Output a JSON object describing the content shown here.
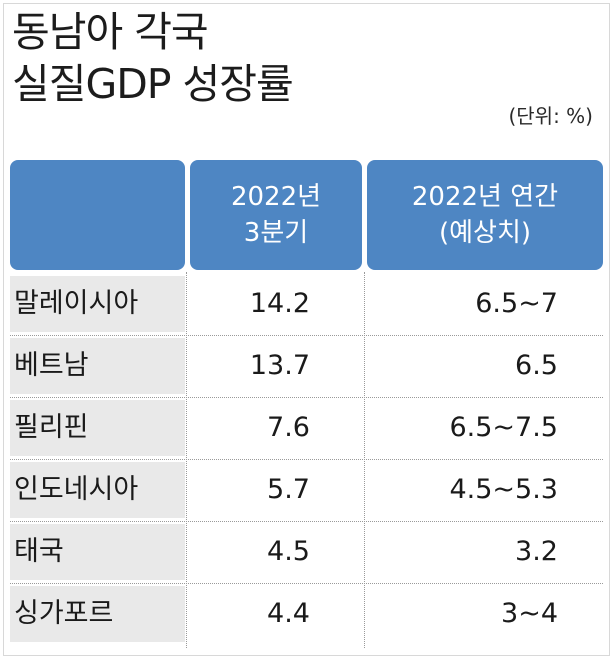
{
  "title_line1": "동남아 각국",
  "title_line2": "실질GDP 성장률",
  "unit": "(단위: %)",
  "headers": {
    "col0": "",
    "col1_line1": "2022년",
    "col1_line2": "3분기",
    "col2_line1": "2022년 연간",
    "col2_line2": "(예상치)"
  },
  "rows": [
    {
      "country": "말레이시아",
      "q3": "14.2",
      "annual": "6.5~7"
    },
    {
      "country": "베트남",
      "q3": "13.7",
      "annual": "6.5"
    },
    {
      "country": "필리핀",
      "q3": "7.6",
      "annual": "6.5~7.5"
    },
    {
      "country": "인도네시아",
      "q3": "5.7",
      "annual": "4.5~5.3"
    },
    {
      "country": "태국",
      "q3": "4.5",
      "annual": "3.2"
    },
    {
      "country": "싱가포르",
      "q3": "4.4",
      "annual": "3~4"
    }
  ],
  "colors": {
    "header_bg": "#4e86c3",
    "name_bg": "#e9e9e9"
  },
  "chart_data": {
    "type": "table",
    "title": "동남아 각국 실질GDP 성장률",
    "unit": "(단위: %)",
    "columns": [
      "2022년 3분기",
      "2022년 연간 (예상치)"
    ],
    "categories": [
      "말레이시아",
      "베트남",
      "필리핀",
      "인도네시아",
      "태국",
      "싱가포르"
    ],
    "series": [
      {
        "name": "2022년 3분기",
        "values": [
          14.2,
          13.7,
          7.6,
          5.7,
          4.5,
          4.4
        ]
      },
      {
        "name": "2022년 연간 (예상치)",
        "values": [
          "6.5~7",
          "6.5",
          "6.5~7.5",
          "4.5~5.3",
          "3.2",
          "3~4"
        ]
      }
    ]
  }
}
